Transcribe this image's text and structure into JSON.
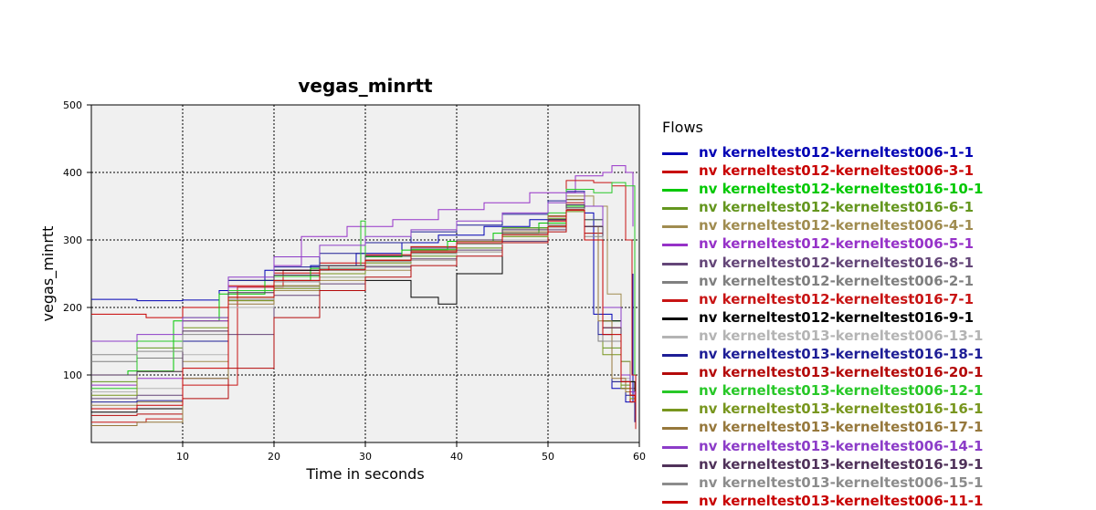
{
  "chart_data": {
    "type": "line",
    "title": "vegas_minrtt",
    "xlabel": "Time in seconds",
    "ylabel": "vegas_minrtt",
    "xlim": [
      0,
      60
    ],
    "ylim": [
      0,
      500
    ],
    "xticks": [
      10,
      20,
      30,
      40,
      50,
      60
    ],
    "yticks": [
      100,
      200,
      300,
      400,
      500
    ],
    "grid": true,
    "legend_title": "Flows",
    "legend_placement": "right",
    "series": [
      {
        "name": "nv kerneltest012-kerneltest006-1-1",
        "color": "#0000b4",
        "x": [
          0,
          5,
          10,
          14,
          19,
          24,
          29,
          34,
          38,
          43,
          48,
          52,
          54,
          55,
          57,
          58.5,
          59.3
        ],
        "y": [
          212,
          210,
          211,
          225,
          255,
          262,
          280,
          296,
          307,
          320,
          330,
          345,
          340,
          190,
          80,
          60,
          250
        ]
      },
      {
        "name": "nv kerneltest012-kerneltest006-3-1",
        "color": "#c80000",
        "x": [
          0,
          6,
          10,
          15,
          20,
          25,
          30,
          35,
          40,
          45,
          50,
          52,
          54,
          56,
          58,
          59,
          59.5
        ],
        "y": [
          190,
          185,
          200,
          232,
          251,
          266,
          278,
          290,
          300,
          318,
          328,
          345,
          300,
          150,
          80,
          60,
          40
        ]
      },
      {
        "name": "nv kerneltest012-kerneltest016-10-1",
        "color": "#00c800",
        "x": [
          0,
          4,
          9,
          14,
          19,
          24,
          30,
          34,
          39,
          44,
          49,
          52,
          54,
          56,
          58,
          59,
          59.5
        ],
        "y": [
          100,
          106,
          180,
          220,
          240,
          258,
          275,
          285,
          298,
          310,
          325,
          350,
          330,
          180,
          120,
          90,
          70
        ]
      },
      {
        "name": "nv kerneltest012-kerneltest016-6-1",
        "color": "#64961e",
        "x": [
          0,
          5,
          10,
          15,
          20,
          25,
          30,
          35,
          40,
          45,
          50,
          52,
          54,
          56,
          58,
          59,
          59.5
        ],
        "y": [
          90,
          140,
          180,
          215,
          232,
          245,
          262,
          276,
          288,
          305,
          332,
          360,
          320,
          140,
          85,
          70,
          60
        ]
      },
      {
        "name": "nv kerneltest012-kerneltest006-4-1",
        "color": "#a08c50",
        "x": [
          0,
          5,
          10,
          15,
          20,
          25,
          30,
          35,
          40,
          45,
          50,
          52,
          55,
          56.5,
          58,
          59,
          59.5
        ],
        "y": [
          55,
          60,
          120,
          210,
          225,
          240,
          255,
          270,
          282,
          300,
          320,
          365,
          350,
          220,
          120,
          90,
          70
        ]
      },
      {
        "name": "nv kerneltest012-kerneltest006-5-1",
        "color": "#9632c8",
        "x": [
          0,
          5,
          10,
          15,
          20,
          23,
          28,
          33,
          38,
          43,
          48,
          53,
          55,
          56,
          57,
          58.5,
          59.3
        ],
        "y": [
          85,
          95,
          180,
          230,
          262,
          305,
          320,
          330,
          345,
          355,
          370,
          395,
          395,
          400,
          410,
          400,
          320
        ]
      },
      {
        "name": "nv kerneltest012-kerneltest016-8-1",
        "color": "#644678",
        "x": [
          0,
          5,
          10,
          15,
          20,
          25,
          30,
          35,
          40,
          45,
          50,
          52,
          54,
          56,
          58,
          59,
          59.5
        ],
        "y": [
          65,
          70,
          95,
          160,
          218,
          235,
          260,
          272,
          285,
          298,
          315,
          352,
          330,
          200,
          100,
          80,
          70
        ]
      },
      {
        "name": "nv kerneltest012-kerneltest006-2-1",
        "color": "#808080",
        "x": [
          0,
          5,
          10,
          15,
          20,
          25,
          30,
          35,
          40,
          45,
          50,
          52,
          54,
          55.5,
          57,
          58.5,
          59.5
        ],
        "y": [
          120,
          125,
          150,
          200,
          240,
          258,
          270,
          282,
          296,
          310,
          322,
          348,
          300,
          150,
          90,
          75,
          60
        ]
      },
      {
        "name": "nv kerneltest012-kerneltest016-7-1",
        "color": "#c81414",
        "x": [
          0,
          6,
          10,
          16,
          21,
          26,
          30,
          35,
          40,
          45,
          50,
          52,
          55,
          57,
          58.5,
          59.2,
          59.6
        ],
        "y": [
          30,
          35,
          85,
          230,
          255,
          262,
          270,
          284,
          300,
          318,
          335,
          388,
          385,
          380,
          300,
          100,
          20
        ]
      },
      {
        "name": "nv kerneltest012-kerneltest016-9-1",
        "color": "#000000",
        "x": [
          0,
          5,
          10,
          15,
          20,
          25,
          30,
          35,
          38,
          40,
          45,
          50,
          52,
          54,
          56,
          58,
          59.5
        ],
        "y": [
          45,
          50,
          150,
          240,
          255,
          262,
          240,
          215,
          205,
          250,
          300,
          330,
          360,
          320,
          180,
          90,
          60
        ]
      },
      {
        "name": "nv kerneltest013-kerneltest006-13-1",
        "color": "#b4b4b4",
        "x": [
          0,
          5,
          10,
          15,
          20,
          25,
          30,
          35,
          40,
          45,
          50,
          52,
          54,
          56,
          58,
          59,
          59.5
        ],
        "y": [
          75,
          80,
          130,
          200,
          230,
          245,
          262,
          270,
          282,
          300,
          318,
          342,
          310,
          160,
          95,
          70,
          60
        ]
      },
      {
        "name": "nv kerneltest013-kerneltest016-18-1",
        "color": "#1e1e96",
        "x": [
          0,
          5,
          10,
          15,
          20,
          25,
          30,
          35,
          40,
          45,
          50,
          52,
          54,
          55.5,
          57,
          58.5,
          59.5
        ],
        "y": [
          60,
          62,
          150,
          240,
          260,
          280,
          296,
          312,
          322,
          338,
          358,
          372,
          320,
          160,
          90,
          70,
          30
        ]
      },
      {
        "name": "nv kerneltest013-kerneltest016-20-1",
        "color": "#b40a0a",
        "x": [
          0,
          5,
          10,
          15,
          20,
          25,
          30,
          35,
          40,
          45,
          50,
          52,
          54,
          56,
          58,
          59,
          59.5
        ],
        "y": [
          40,
          42,
          65,
          110,
          185,
          225,
          245,
          262,
          276,
          296,
          312,
          355,
          310,
          170,
          90,
          70,
          60
        ]
      },
      {
        "name": "nv kerneltest013-kerneltest006-12-1",
        "color": "#28c828",
        "x": [
          0,
          5,
          10,
          15,
          20,
          25,
          29.5,
          30,
          35,
          40,
          45,
          50,
          52,
          55,
          57,
          58.5,
          59.5
        ],
        "y": [
          80,
          150,
          185,
          225,
          246,
          262,
          328,
          276,
          286,
          300,
          318,
          340,
          375,
          370,
          385,
          380,
          100
        ]
      },
      {
        "name": "nv kerneltest013-kerneltest016-16-1",
        "color": "#78961e",
        "x": [
          0,
          5,
          10,
          15,
          20,
          25,
          30,
          35,
          40,
          45,
          50,
          52,
          54,
          56,
          58,
          59,
          59.5
        ],
        "y": [
          70,
          105,
          170,
          210,
          228,
          250,
          266,
          280,
          294,
          305,
          322,
          342,
          300,
          130,
          80,
          65,
          60
        ]
      },
      {
        "name": "nv kerneltest013-kerneltest016-17-1",
        "color": "#96783c",
        "x": [
          0,
          5,
          10,
          15,
          20,
          25,
          30,
          35,
          40,
          45,
          50,
          52,
          54,
          55.5,
          57,
          58.5,
          59.5
        ],
        "y": [
          25,
          30,
          95,
          205,
          232,
          255,
          270,
          284,
          298,
          312,
          336,
          360,
          320,
          180,
          95,
          75,
          60
        ]
      },
      {
        "name": "nv kerneltest013-kerneltest006-14-1",
        "color": "#8c3cc8",
        "x": [
          0,
          5,
          10,
          15,
          20,
          25,
          30,
          35,
          40,
          45,
          50,
          52,
          54,
          56,
          58,
          59,
          59.5
        ],
        "y": [
          150,
          160,
          185,
          245,
          275,
          292,
          305,
          315,
          328,
          340,
          355,
          370,
          350,
          200,
          100,
          75,
          60
        ]
      },
      {
        "name": "nv kerneltest013-kerneltest016-19-1",
        "color": "#50325a",
        "x": [
          0,
          5,
          10,
          15,
          20,
          25,
          30,
          35,
          40,
          45,
          50,
          52,
          54,
          56,
          58,
          59,
          59.5
        ],
        "y": [
          100,
          105,
          165,
          222,
          248,
          262,
          276,
          288,
          300,
          315,
          330,
          352,
          320,
          170,
          90,
          70,
          60
        ]
      },
      {
        "name": "nv kerneltest013-kerneltest006-15-1",
        "color": "#8c8c8c",
        "x": [
          0,
          5,
          10,
          15,
          20,
          25,
          30,
          35,
          40,
          45,
          50,
          52,
          54,
          56,
          58,
          59,
          59.5
        ],
        "y": [
          130,
          135,
          160,
          212,
          238,
          255,
          268,
          280,
          294,
          308,
          322,
          346,
          305,
          150,
          90,
          70,
          60
        ]
      },
      {
        "name": "nv kerneltest013-kerneltest006-11-1",
        "color": "#c80000",
        "x": [
          0,
          5,
          10,
          15,
          20,
          25,
          30,
          35,
          40,
          45,
          50,
          52,
          54,
          56,
          58,
          59,
          59.5
        ],
        "y": [
          50,
          55,
          110,
          215,
          240,
          256,
          270,
          282,
          296,
          308,
          320,
          344,
          300,
          160,
          90,
          70,
          60
        ]
      }
    ]
  }
}
